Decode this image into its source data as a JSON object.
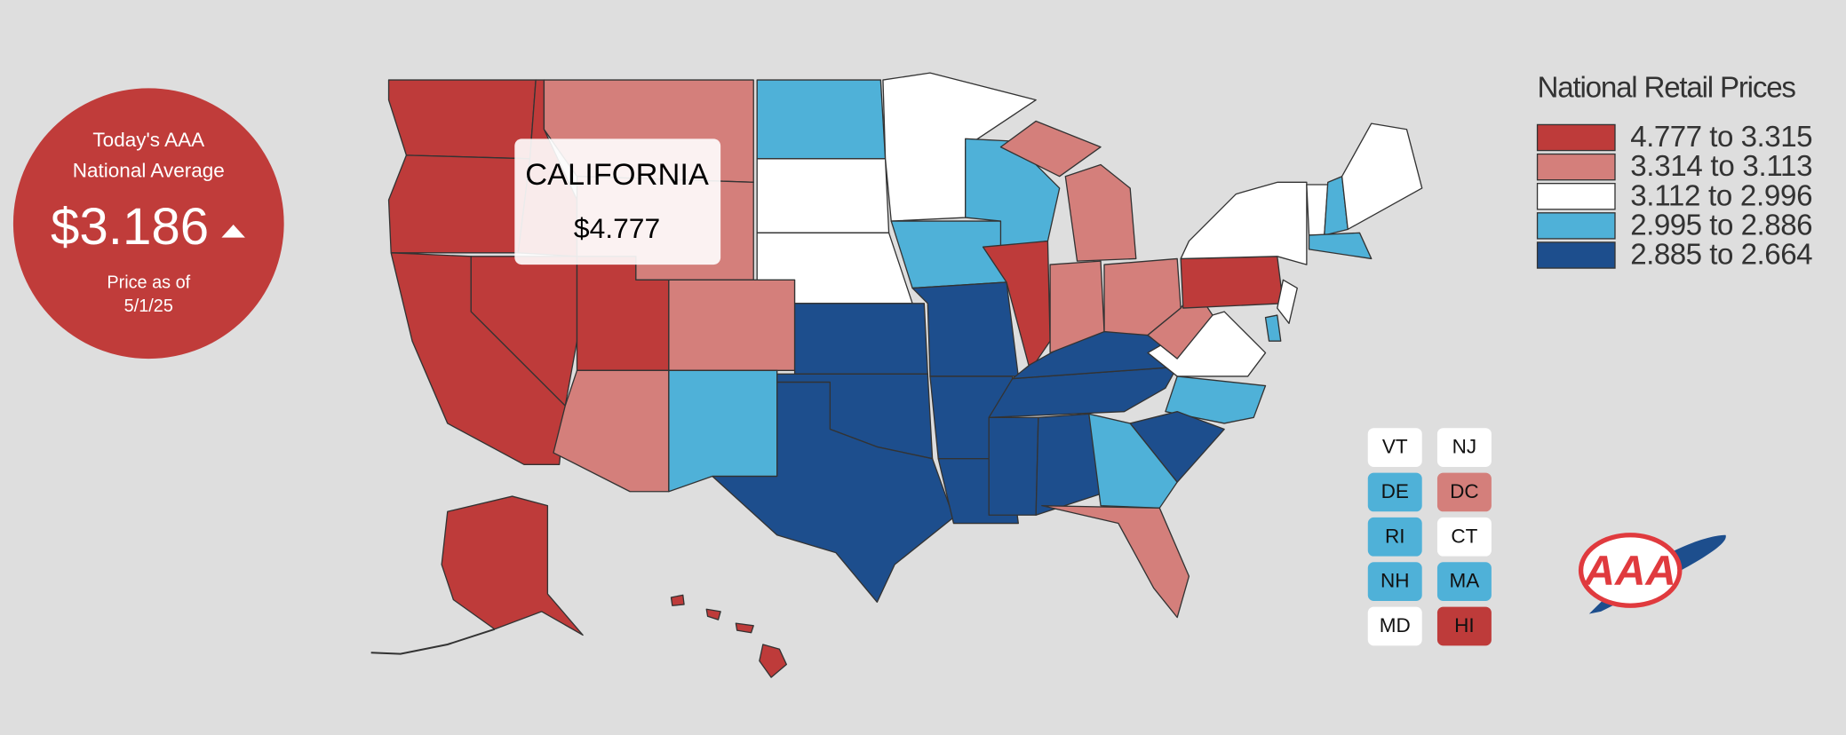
{
  "national_average": {
    "heading": [
      "Today's AAA",
      "National Average"
    ],
    "price": "$3.186",
    "date_lines": [
      "Price as of",
      "5/1/25"
    ],
    "color": "#c03c3a"
  },
  "tooltip": {
    "state": "CALIFORNIA",
    "price": "$4.777"
  },
  "legend": {
    "title": "National Retail Prices",
    "items": [
      {
        "label": "4.777 to 3.315",
        "color": "#be3b3a"
      },
      {
        "label": "3.314 to 3.113",
        "color": "#d47f7b"
      },
      {
        "label": "3.112 to 2.996",
        "color": "#ffffff"
      },
      {
        "label": "2.995 to 2.886",
        "color": "#4fb1d8"
      },
      {
        "label": "2.885 to 2.664",
        "color": "#1d4e8d"
      }
    ]
  },
  "small_states": [
    {
      "label": "VT",
      "color": "#ffffff"
    },
    {
      "label": "NJ",
      "color": "#ffffff"
    },
    {
      "label": "DE",
      "color": "#4fb1d8"
    },
    {
      "label": "DC",
      "color": "#d47f7b"
    },
    {
      "label": "RI",
      "color": "#4fb1d8"
    },
    {
      "label": "CT",
      "color": "#ffffff"
    },
    {
      "label": "NH",
      "color": "#4fb1d8"
    },
    {
      "label": "MA",
      "color": "#4fb1d8"
    },
    {
      "label": "MD",
      "color": "#ffffff"
    },
    {
      "label": "HI",
      "color": "#be3b3a"
    }
  ],
  "logo": "AAA"
}
